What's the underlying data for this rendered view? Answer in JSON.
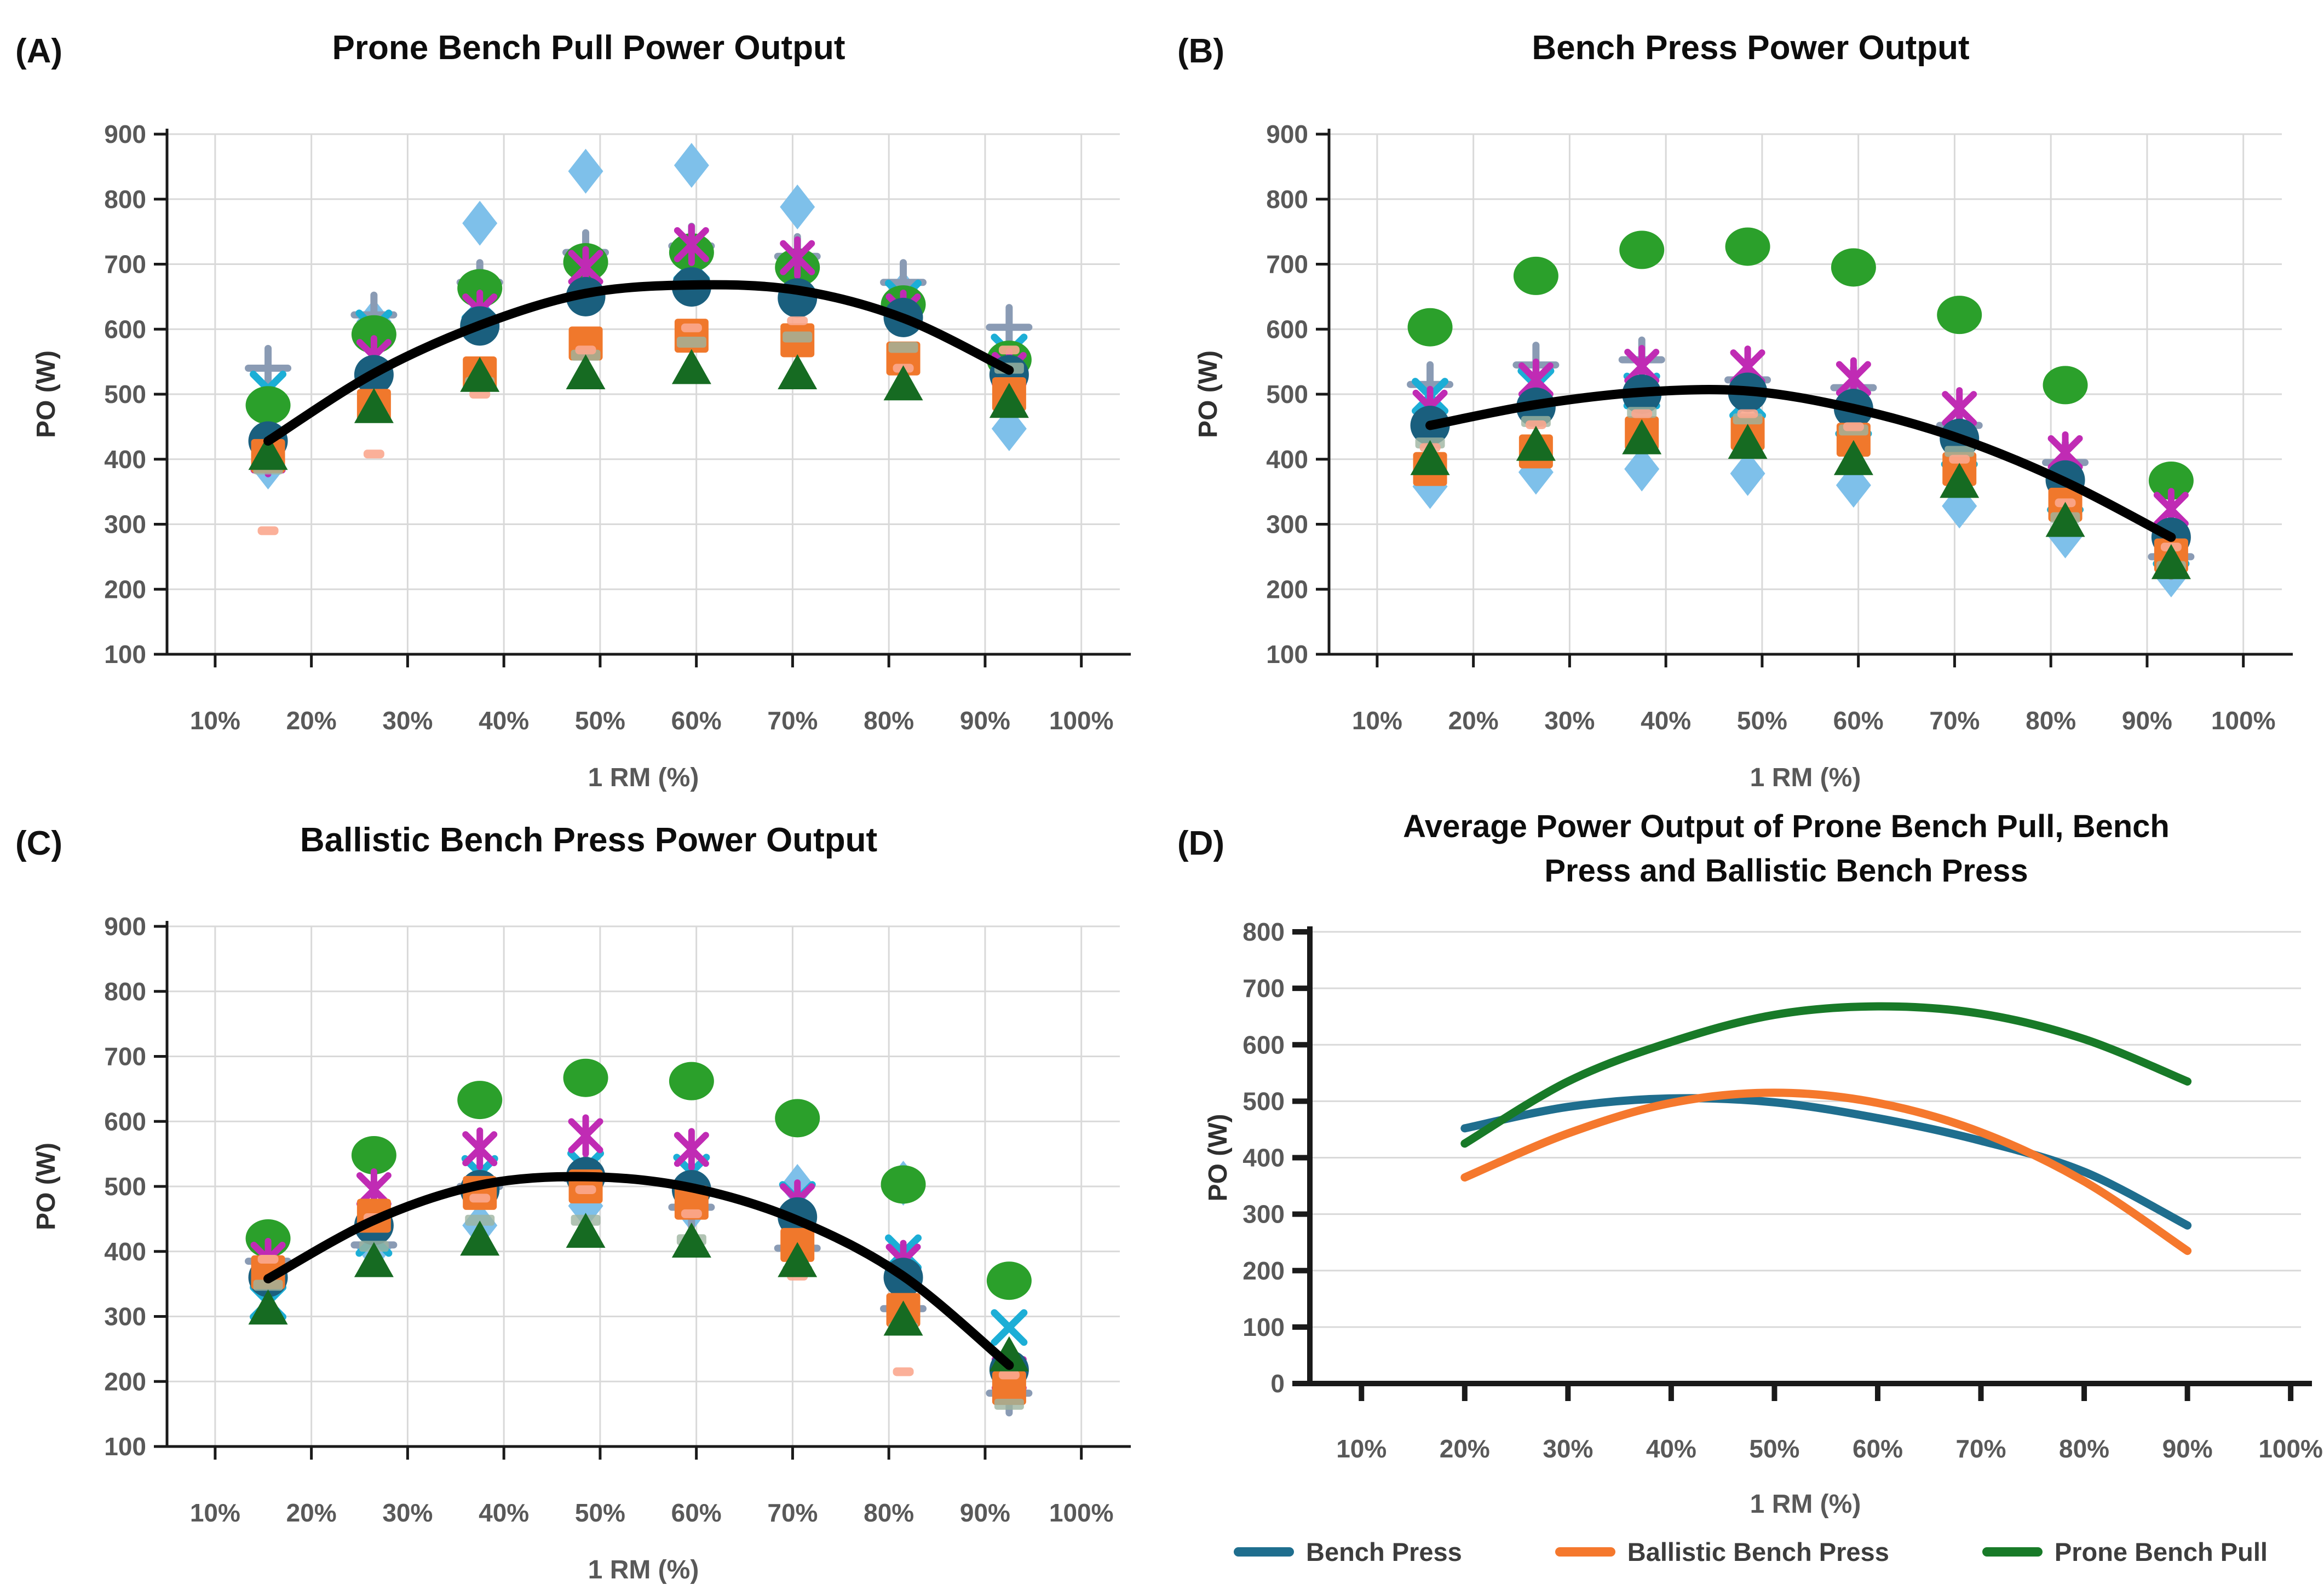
{
  "figure_title": "Power output figure with four panels",
  "axis_style": {
    "grid_color": "#D9D9D9",
    "axis_color": "#1a1a1a",
    "tick_label_color": "#595959",
    "title_color": "#0d0d0d"
  },
  "chart_data": [
    {
      "type": "scatter",
      "panel_label": "(A)",
      "title": "Prone Bench Pull Power Output",
      "xlabel": "1 RM (%)",
      "ylabel": "PO (W)",
      "ylim": [
        100,
        900
      ],
      "ytick_step": 100,
      "xlim": [
        5,
        104
      ],
      "xticks_percent": [
        10,
        20,
        30,
        40,
        50,
        60,
        70,
        80,
        90,
        100
      ],
      "x_positions_percent": [
        15.5,
        26.5,
        37.5,
        48.5,
        59.5,
        70.5,
        81.5,
        92.5
      ],
      "grid": "both",
      "series": [
        {
          "name": "light-blue-diamond",
          "marker": "diamond",
          "color": "#7EC0EA",
          "values": [
            388,
            612,
            763,
            843,
            852,
            788,
            655,
            447
          ]
        },
        {
          "name": "gray-plus",
          "marker": "plus",
          "color": "#8A9BB4",
          "values": [
            540,
            622,
            672,
            718,
            728,
            712,
            672,
            603
          ]
        },
        {
          "name": "cyan-x",
          "marker": "x",
          "color": "#1CAED6",
          "values": [
            508,
            602,
            640,
            678,
            700,
            682,
            648,
            565
          ]
        },
        {
          "name": "green-circle",
          "marker": "circle-wide",
          "color": "#2BA02B",
          "values": [
            483,
            592,
            663,
            703,
            718,
            695,
            638,
            553
          ]
        },
        {
          "name": "magenta-asterisk",
          "marker": "asterisk",
          "color": "#C02BB4",
          "values": [
            405,
            558,
            628,
            695,
            730,
            710,
            628,
            538
          ]
        },
        {
          "name": "dark-blue-circle",
          "marker": "circle",
          "color": "#1A5F7E",
          "values": [
            428,
            530,
            605,
            650,
            665,
            648,
            618,
            530
          ]
        },
        {
          "name": "orange-square",
          "marker": "square",
          "color": "#F0782C",
          "values": [
            405,
            482,
            532,
            578,
            590,
            583,
            555,
            500
          ]
        },
        {
          "name": "sage-dash",
          "marker": "dash-wide",
          "color": "#9DB4A0",
          "values": [
            385,
            465,
            518,
            560,
            580,
            588,
            572,
            540
          ]
        },
        {
          "name": "salmon-dash",
          "marker": "dash",
          "color": "#FBA78E",
          "values": [
            290,
            408,
            500,
            568,
            602,
            613,
            540,
            568
          ]
        },
        {
          "name": "dark-green-triangle",
          "marker": "triangle",
          "color": "#166B22",
          "values": [
            408,
            480,
            528,
            532,
            540,
            532,
            515,
            488
          ]
        }
      ],
      "trend": {
        "name": "polynomial-trend",
        "color": "#000000",
        "values": [
          428,
          532,
          606,
          655,
          668,
          660,
          617,
          537
        ]
      }
    },
    {
      "type": "scatter",
      "panel_label": "(B)",
      "title": "Bench Press Power Output",
      "xlabel": "1 RM (%)",
      "ylabel": "PO (W)",
      "ylim": [
        100,
        900
      ],
      "ytick_step": 100,
      "xlim": [
        5,
        104
      ],
      "xticks_percent": [
        10,
        20,
        30,
        40,
        50,
        60,
        70,
        80,
        90,
        100
      ],
      "x_positions_percent": [
        15.5,
        26.5,
        37.5,
        48.5,
        59.5,
        70.5,
        81.5,
        92.5
      ],
      "grid": "both",
      "series": [
        {
          "name": "light-blue-diamond",
          "marker": "diamond",
          "color": "#7EC0EA",
          "values": [
            358,
            380,
            385,
            378,
            360,
            328,
            282,
            222
          ]
        },
        {
          "name": "gray-plus",
          "marker": "plus",
          "color": "#8A9BB4",
          "values": [
            515,
            545,
            553,
            522,
            510,
            452,
            395,
            250
          ]
        },
        {
          "name": "cyan-x",
          "marker": "x",
          "color": "#1CAED6",
          "values": [
            497,
            513,
            505,
            490,
            462,
            415,
            345,
            262
          ]
        },
        {
          "name": "green-circle",
          "marker": "circle-wide",
          "color": "#2BA02B",
          "values": [
            603,
            682,
            722,
            727,
            695,
            622,
            514,
            367
          ]
        },
        {
          "name": "magenta-asterisk",
          "marker": "asterisk",
          "color": "#C02BB4",
          "values": [
            480,
            522,
            543,
            542,
            524,
            478,
            410,
            323
          ]
        },
        {
          "name": "dark-blue-circle",
          "marker": "circle",
          "color": "#1A5F7E",
          "values": [
            452,
            480,
            500,
            503,
            478,
            432,
            368,
            280
          ]
        },
        {
          "name": "orange-square",
          "marker": "square",
          "color": "#F0782C",
          "values": [
            385,
            412,
            440,
            440,
            430,
            385,
            330,
            252
          ]
        },
        {
          "name": "sage-dash",
          "marker": "dash-wide",
          "color": "#9DB4A0",
          "values": [
            425,
            458,
            472,
            462,
            445,
            412,
            310,
            235
          ]
        },
        {
          "name": "salmon-dash",
          "marker": "dash",
          "color": "#FBA78E",
          "values": [
            418,
            453,
            470,
            470,
            450,
            400,
            333,
            265
          ]
        },
        {
          "name": "dark-green-triangle",
          "marker": "triangle",
          "color": "#166B22",
          "values": [
            400,
            422,
            432,
            425,
            400,
            365,
            305,
            240
          ]
        }
      ],
      "trend": {
        "name": "polynomial-trend",
        "color": "#000000",
        "values": [
          452,
          484,
          503,
          505,
          478,
          432,
          365,
          280
        ]
      }
    },
    {
      "type": "scatter",
      "panel_label": "(C)",
      "title": "Ballistic Bench Press Power Output",
      "xlabel": "1 RM (%)",
      "ylabel": "PO (W)",
      "ylim": [
        100,
        900
      ],
      "ytick_step": 100,
      "xlim": [
        5,
        104
      ],
      "xticks_percent": [
        10,
        20,
        30,
        40,
        50,
        60,
        70,
        80,
        90,
        100
      ],
      "x_positions_percent": [
        15.5,
        26.5,
        37.5,
        48.5,
        59.5,
        70.5,
        81.5,
        92.5
      ],
      "grid": "both",
      "series": [
        {
          "name": "light-blue-diamond",
          "marker": "diamond",
          "color": "#7EC0EA",
          "values": [
            350,
            405,
            440,
            470,
            465,
            500,
            505,
            215
          ]
        },
        {
          "name": "gray-plus",
          "marker": "plus",
          "color": "#8A9BB4",
          "values": [
            385,
            410,
            500,
            512,
            468,
            405,
            312,
            182
          ]
        },
        {
          "name": "cyan-x",
          "marker": "x",
          "color": "#1CAED6",
          "values": [
            322,
            420,
            520,
            528,
            522,
            480,
            398,
            283
          ]
        },
        {
          "name": "green-circle",
          "marker": "circle-wide",
          "color": "#2BA02B",
          "values": [
            420,
            548,
            633,
            667,
            662,
            605,
            503,
            355
          ]
        },
        {
          "name": "magenta-asterisk",
          "marker": "asterisk",
          "color": "#C02BB4",
          "values": [
            388,
            495,
            558,
            578,
            557,
            478,
            385,
            212
          ]
        },
        {
          "name": "dark-blue-circle",
          "marker": "circle",
          "color": "#1A5F7E",
          "values": [
            360,
            440,
            495,
            515,
            495,
            453,
            360,
            218
          ]
        },
        {
          "name": "orange-square",
          "marker": "square",
          "color": "#F0782C",
          "values": [
            368,
            455,
            490,
            500,
            475,
            410,
            310,
            190
          ]
        },
        {
          "name": "sage-dash",
          "marker": "dash-wide",
          "color": "#9DB4A0",
          "values": [
            348,
            408,
            448,
            448,
            418,
            370,
            282,
            165
          ]
        },
        {
          "name": "salmon-dash",
          "marker": "dash",
          "color": "#FBA78E",
          "values": [
            388,
            452,
            482,
            495,
            458,
            362,
            215,
            210
          ]
        },
        {
          "name": "dark-green-triangle",
          "marker": "triangle",
          "color": "#166B22",
          "values": [
            312,
            385,
            418,
            430,
            415,
            385,
            295,
            240
          ]
        }
      ],
      "trend": {
        "name": "polynomial-trend",
        "color": "#000000",
        "values": [
          358,
          448,
          502,
          515,
          498,
          448,
          362,
          225
        ]
      }
    },
    {
      "type": "line",
      "panel_label": "(D)",
      "title": "Average Power Output of Prone Bench Pull, Bench Press and Ballistic Bench Press",
      "xlabel": "1 RM (%)",
      "ylabel": "PO (W)",
      "ylim": [
        0,
        800
      ],
      "ytick_step": 100,
      "xlim": [
        5,
        101
      ],
      "xticks_percent": [
        10,
        20,
        30,
        40,
        50,
        60,
        70,
        80,
        90,
        100
      ],
      "x": [
        20,
        30,
        40,
        50,
        60,
        70,
        80,
        90
      ],
      "grid": "horizontal",
      "legend_position": "bottom",
      "series": [
        {
          "name": "Bench Press",
          "color": "#1F6E8E",
          "values": [
            452,
            490,
            505,
            498,
            470,
            430,
            375,
            280
          ]
        },
        {
          "name": "Ballistic Bench Press",
          "color": "#F5782D",
          "values": [
            365,
            443,
            497,
            515,
            497,
            445,
            358,
            235
          ]
        },
        {
          "name": "Prone Bench Pull",
          "color": "#187A28",
          "values": [
            425,
            535,
            605,
            653,
            668,
            655,
            610,
            535
          ]
        }
      ]
    }
  ]
}
